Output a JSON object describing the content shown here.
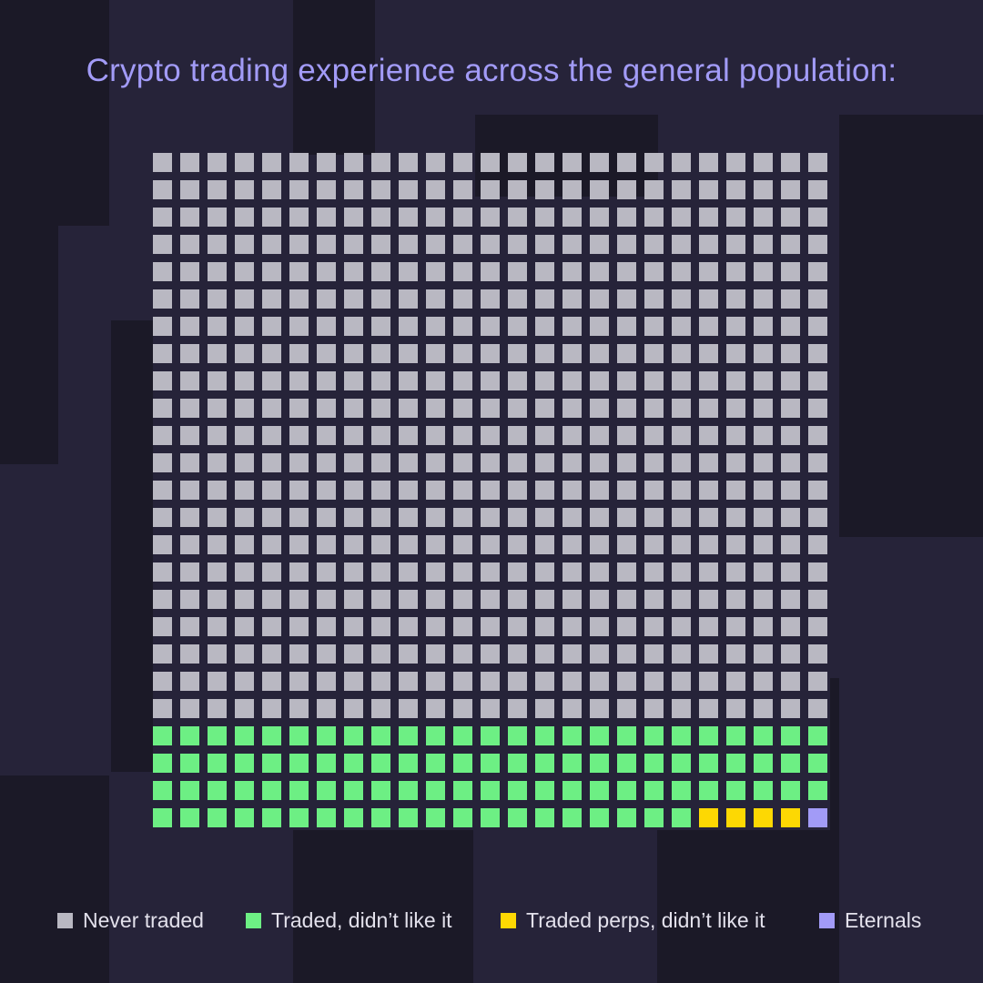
{
  "title": "Crypto trading experience across the general population:",
  "colors": {
    "background": "#262339",
    "background_blocks": "#1b1927",
    "title": "#a29bf7",
    "legend_text": "#e3e1ec"
  },
  "chart_data": {
    "type": "waffle",
    "title": "Crypto trading experience across the general population:",
    "grid": {
      "rows": 25,
      "cols": 25,
      "total_cells": 625
    },
    "fill_order": "bottom-row last, categories laid out row-major top-left to bottom-right",
    "series": [
      {
        "name": "Never traded",
        "count": 525,
        "color": "#b9b8c2"
      },
      {
        "name": "Traded, didn’t like it",
        "count": 95,
        "color": "#6def84"
      },
      {
        "name": "Traded perps, didn’t like it",
        "count": 4,
        "color": "#fdd803"
      },
      {
        "name": "Eternals",
        "count": 1,
        "color": "#a29bf7"
      }
    ],
    "legend_placement": "bottom"
  },
  "legend": [
    {
      "label": "Never traded",
      "color": "#b9b8c2"
    },
    {
      "label": "Traded, didn’t like it",
      "color": "#6def84"
    },
    {
      "label": "Traded perps, didn’t like it",
      "color": "#fdd803"
    },
    {
      "label": "Eternals",
      "color": "#a29bf7"
    }
  ]
}
